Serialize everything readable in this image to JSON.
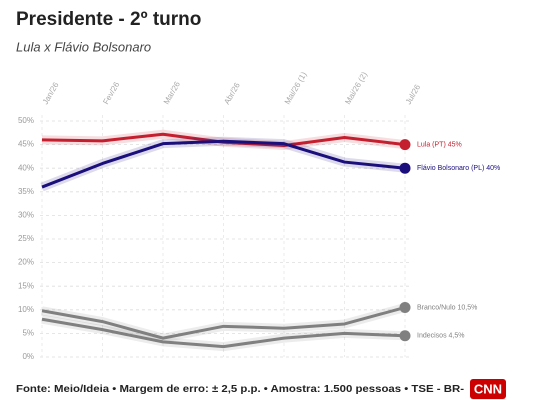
{
  "chart_data": {
    "type": "line",
    "title": "Presidente - 2º turno",
    "subtitle": "Lula x Flávio Bolsonaro",
    "categories": [
      "Jan/26",
      "Fev/26",
      "Mar/26",
      "Abr/26",
      "Mai/26 (1)",
      "Mai/26 (2)",
      "Jul/26"
    ],
    "series": [
      {
        "name": "Lula (PT) 45%",
        "color": "#c41f2e",
        "values": [
          46,
          45.8,
          47.2,
          45.5,
          44.8,
          46.5,
          45
        ]
      },
      {
        "name": "Flávio Bolsonaro (PL) 40%",
        "color": "#1b0f7c",
        "values": [
          36,
          41,
          45.2,
          45.7,
          45.2,
          41.3,
          40
        ]
      },
      {
        "name": "Branco/Nulo 10,5%",
        "color": "#808080",
        "values": [
          9.8,
          7.5,
          4,
          6.5,
          6.1,
          7,
          10.5
        ]
      },
      {
        "name": "Indecisos 4,5%",
        "color": "#808080",
        "values": [
          8,
          5.8,
          3.2,
          2.2,
          4,
          5,
          4.5
        ]
      }
    ],
    "ylim": [
      0,
      50
    ],
    "yticks": [
      {
        "value": 0,
        "label": "0%"
      },
      {
        "value": 5,
        "label": "5%"
      },
      {
        "value": 10,
        "label": "10%"
      },
      {
        "value": 15,
        "label": "15%"
      },
      {
        "value": 20,
        "label": "20%"
      },
      {
        "value": 25,
        "label": "25%"
      },
      {
        "value": 30,
        "label": "30%"
      },
      {
        "value": 35,
        "label": "35%"
      },
      {
        "value": 40,
        "label": "40%"
      },
      {
        "value": 45,
        "label": "45%"
      },
      {
        "value": 50,
        "label": "50%"
      }
    ],
    "grid": true,
    "source": "Fonte: Meio/Ideia • Margem de erro: ± 2,5 p.p. • Amostra: 1.500 pessoas • TSE - BR-",
    "logo": "CNN"
  }
}
